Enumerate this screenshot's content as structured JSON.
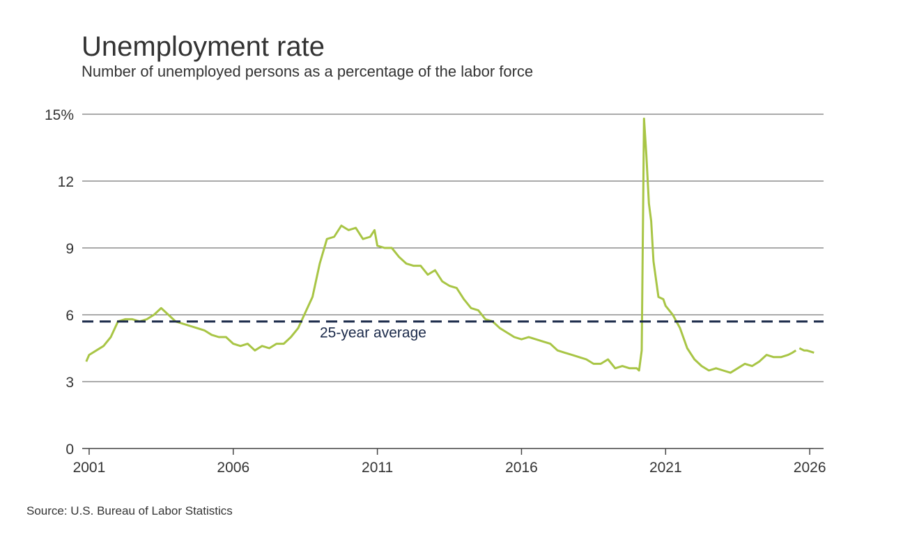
{
  "chart_data": {
    "type": "line",
    "title": "Unemployment rate",
    "subtitle": "Number of unemployed persons as a percentage of the labor force",
    "source": "Source: U.S. Bureau of Labor Statistics",
    "x": [
      2000.9,
      2001.0,
      2001.25,
      2001.5,
      2001.75,
      2002.0,
      2002.25,
      2002.5,
      2002.75,
      2003.0,
      2003.25,
      2003.5,
      2003.75,
      2004.0,
      2004.25,
      2004.5,
      2004.75,
      2005.0,
      2005.25,
      2005.5,
      2005.75,
      2006.0,
      2006.25,
      2006.5,
      2006.75,
      2007.0,
      2007.25,
      2007.5,
      2007.75,
      2008.0,
      2008.25,
      2008.5,
      2008.75,
      2009.0,
      2009.25,
      2009.5,
      2009.75,
      2010.0,
      2010.25,
      2010.5,
      2010.75,
      2010.9,
      2011.0,
      2011.25,
      2011.5,
      2011.75,
      2012.0,
      2012.25,
      2012.5,
      2012.75,
      2013.0,
      2013.25,
      2013.5,
      2013.75,
      2014.0,
      2014.25,
      2014.5,
      2014.75,
      2015.0,
      2015.25,
      2015.5,
      2015.75,
      2016.0,
      2016.25,
      2016.5,
      2016.75,
      2017.0,
      2017.25,
      2017.5,
      2017.75,
      2018.0,
      2018.25,
      2018.5,
      2018.75,
      2019.0,
      2019.25,
      2019.5,
      2019.75,
      2020.0,
      2020.08,
      2020.17,
      2020.25,
      2020.33,
      2020.42,
      2020.5,
      2020.58,
      2020.75,
      2020.92,
      2021.0,
      2021.25,
      2021.5,
      2021.75,
      2022.0,
      2022.25,
      2022.5,
      2022.75,
      2023.0,
      2023.25,
      2023.5,
      2023.75,
      2024.0,
      2024.25,
      2024.5,
      2024.75,
      2025.0,
      2025.25,
      2025.4,
      2025.52,
      2025.58,
      2025.64,
      2025.8,
      2025.9,
      2026.15
    ],
    "series": [
      {
        "name": "Unemployment rate",
        "color": "#a8c545",
        "values": [
          3.9,
          4.2,
          4.4,
          4.6,
          5.0,
          5.7,
          5.8,
          5.8,
          5.7,
          5.8,
          6.0,
          6.3,
          6.0,
          5.7,
          5.6,
          5.5,
          5.4,
          5.3,
          5.1,
          5.0,
          5.0,
          4.7,
          4.6,
          4.7,
          4.4,
          4.6,
          4.5,
          4.7,
          4.7,
          5.0,
          5.4,
          6.1,
          6.8,
          8.3,
          9.4,
          9.5,
          10.0,
          9.8,
          9.9,
          9.4,
          9.5,
          9.8,
          9.1,
          9.0,
          9.0,
          8.6,
          8.3,
          8.2,
          8.2,
          7.8,
          8.0,
          7.5,
          7.3,
          7.2,
          6.7,
          6.3,
          6.2,
          5.8,
          5.7,
          5.4,
          5.2,
          5.0,
          4.9,
          5.0,
          4.9,
          4.8,
          4.7,
          4.4,
          4.3,
          4.2,
          4.1,
          4.0,
          3.8,
          3.8,
          4.0,
          3.6,
          3.7,
          3.6,
          3.6,
          3.5,
          4.4,
          14.8,
          13.2,
          11.0,
          10.2,
          8.4,
          6.8,
          6.7,
          6.4,
          6.0,
          5.4,
          4.5,
          4.0,
          3.7,
          3.5,
          3.6,
          3.5,
          3.4,
          3.6,
          3.8,
          3.7,
          3.9,
          4.2,
          4.1,
          4.1,
          4.2,
          4.3,
          4.4,
          null,
          4.5,
          4.4,
          4.4,
          4.3
        ]
      }
    ],
    "average": {
      "label": "25-year average",
      "value": 5.7,
      "color": "#1b2a4a"
    },
    "xlim": [
      2000.76,
      2026.48
    ],
    "xticks": [
      2001,
      2006,
      2011,
      2016,
      2021,
      2026
    ],
    "ylim": [
      0,
      15
    ],
    "yticks": [
      0,
      3,
      6,
      9,
      12,
      {
        "value": 15,
        "label": "15%"
      }
    ],
    "grid": true
  }
}
